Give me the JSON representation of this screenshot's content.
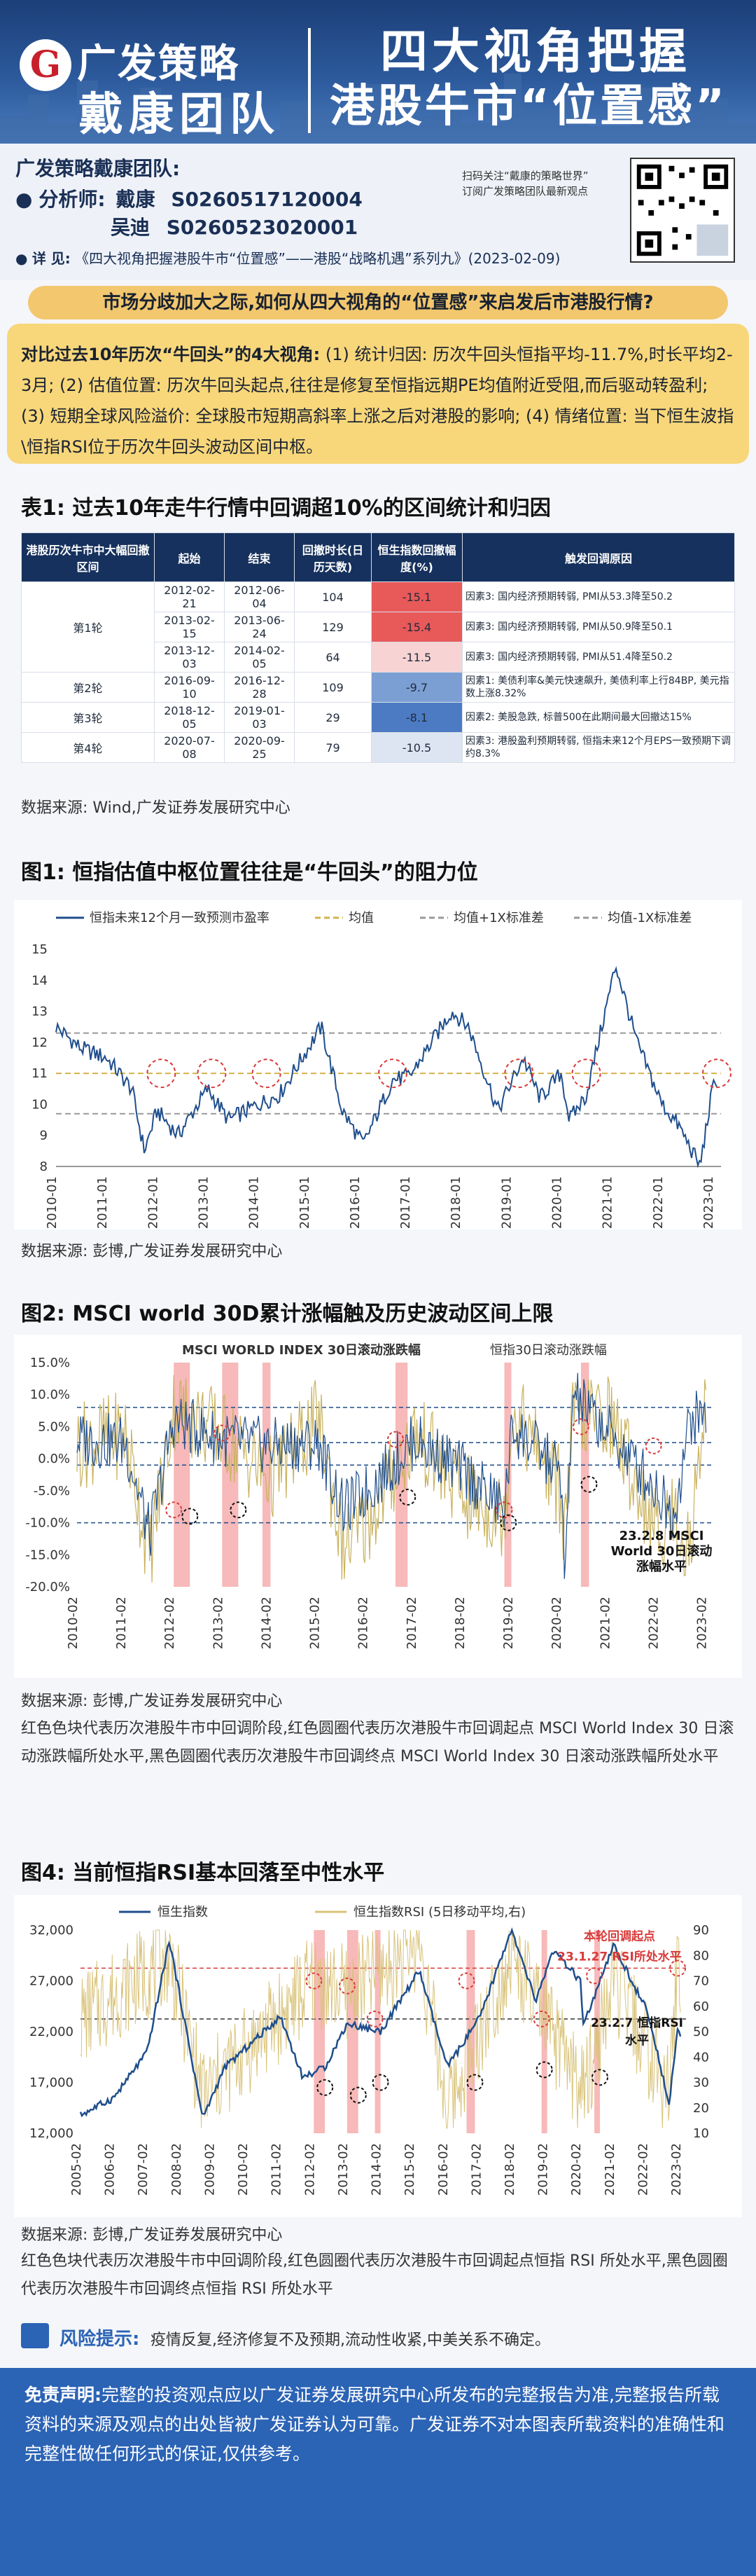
{
  "header": {
    "brand": "广发策略",
    "team": "戴康团队",
    "title_line1": "四大视角把握",
    "title_line2": "港股牛市“位置感”"
  },
  "info": {
    "team_label": "广发策略戴康团队:",
    "analyst_label": "分析师:",
    "analysts": [
      {
        "name": "戴康",
        "id": "S0260517120004"
      },
      {
        "name": "吴迪",
        "id": "S0260523020001"
      }
    ],
    "detail_label": "详 见:",
    "detail_text": "《四大视角把握港股牛市“位置感”——港股“战略机遇”系列九》(2023-02-09)",
    "qr_note_1": "扫码关注“戴康的策略世界”",
    "qr_note_2": "订阅广发策略团队最新观点"
  },
  "question": "市场分歧加大之际,如何从四大视角的“位置感”来启发后市港股行情?",
  "summary": "对比过去10年历次“牛回头”的4大视角: (1) 统计归因: 历次牛回头恒指平均-11.7%,时长平均2-3月; (2) 估值位置: 历次牛回头起点,往往是修复至恒指远期PE均值附近受阻,而后驱动转盈利; (3) 短期全球风险溢价: 全球股市短期高斜率上涨之后对港股的影响; (4) 情绪位置: 当下恒生波指\\恒指RSI位于历次牛回头波动区间中枢。",
  "summary_lead": "对比过去10年历次“牛回头”的4大视角:",
  "summary_body": " (1) 统计归因: 历次牛回头恒指平均-11.7%,时长平均2-3月; (2) 估值位置: 历次牛回头起点,往往是修复至恒指远期PE均值附近受阻,而后驱动转盈利; (3) 短期全球风险溢价: 全球股市短期高斜率上涨之后对港股的影响; (4) 情绪位置: 当下恒生波指\\恒指RSI位于历次牛回头波动区间中枢。",
  "table": {
    "title": "表1: 过去10年走牛行情中回调超10%的区间统计和归因",
    "headers": [
      "港股历次牛市中大幅回撤区间",
      "起始",
      "结束",
      "回撤时长(日历天数)",
      "恒生指数回撤幅度(%)",
      "触发回调原因"
    ],
    "rows": [
      {
        "round": "第1轮",
        "start": "2012-02-21",
        "end": "2012-06-04",
        "days": "104",
        "pct": "-15.1",
        "reason": "因素3: 国内经济预期转弱, PMI从53.3降至50.2",
        "pct_val": -15.1
      },
      {
        "round": "",
        "start": "2013-02-15",
        "end": "2013-06-24",
        "days": "129",
        "pct": "-15.4",
        "reason": "因素3: 国内经济预期转弱, PMI从50.9降至50.1",
        "pct_val": -15.4
      },
      {
        "round": "",
        "start": "2013-12-03",
        "end": "2014-02-05",
        "days": "64",
        "pct": "-11.5",
        "reason": "因素3: 国内经济预期转弱, PMI从51.4降至50.2",
        "pct_val": -11.5
      },
      {
        "round": "第2轮",
        "start": "2016-09-10",
        "end": "2016-12-28",
        "days": "109",
        "pct": "-9.7",
        "reason": "因素1: 美债利率&美元快速飙升, 美债利率上行84BP, 美元指数上涨8.32%",
        "pct_val": -9.7
      },
      {
        "round": "第3轮",
        "start": "2018-12-05",
        "end": "2019-01-03",
        "days": "29",
        "pct": "-8.1",
        "reason": "因素2: 美股急跌, 标普500在此期间最大回撤达15%",
        "pct_val": -8.1
      },
      {
        "round": "第4轮",
        "start": "2020-07-08",
        "end": "2020-09-25",
        "days": "79",
        "pct": "-10.5",
        "reason": "因素3: 港股盈利预期转弱, 恒指未来12个月EPS一致预期下调约8.3%",
        "pct_val": -10.5
      }
    ],
    "source": "数据来源: Wind,广发证券发展研究中心"
  },
  "fig1": {
    "title": "图1: 恒指估值中枢位置往往是“牛回头”的阻力位",
    "source": "数据来源: 彭博,广发证券发展研究中心"
  },
  "fig2": {
    "title": "图2: MSCI world 30D累计涨幅触及历史波动区间上限",
    "source": "数据来源: 彭博,广发证券发展研究中心",
    "note": "红色色块代表历次港股牛市中回调阶段,红色圆圈代表历次港股牛市回调起点 MSCI World Index 30 日滚动涨跌幅所处水平,黑色圆圈代表历次港股牛市回调终点 MSCI World Index 30 日滚动涨跌幅所处水平"
  },
  "fig3": {
    "title": "图4: 当前恒指RSI基本回落至中性水平",
    "source": "数据来源: 彭博,广发证券发展研究中心",
    "note": "红色色块代表历次港股牛市中回调阶段,红色圆圈代表历次港股牛市回调起点恒指 RSI 所处水平,黑色圆圈代表历次港股牛市回调终点恒指 RSI 所处水平"
  },
  "chart_data": [
    {
      "type": "line",
      "title": "图1: 恒指估值中枢位置往往是“牛回头”的阻力位",
      "series": [
        {
          "name": "恒指未来12个月一致预测市盈率",
          "x": [
            "2010-01",
            "2010-07",
            "2011-01",
            "2011-07",
            "2011-10",
            "2012-01",
            "2012-06",
            "2013-01",
            "2013-06",
            "2014-01",
            "2014-06",
            "2015-04",
            "2015-09",
            "2016-02",
            "2016-09",
            "2017-01",
            "2017-11",
            "2018-03",
            "2018-10",
            "2019-04",
            "2019-08",
            "2020-01",
            "2020-03",
            "2020-07",
            "2021-02",
            "2021-07",
            "2022-01",
            "2022-05",
            "2022-10",
            "2023-01",
            "2023-02"
          ],
          "values": [
            12.5,
            11.8,
            11.5,
            10.5,
            8.5,
            9.8,
            9.0,
            10.5,
            9.5,
            10.0,
            10.3,
            12.5,
            9.8,
            8.7,
            10.8,
            10.9,
            13.0,
            12.5,
            9.8,
            11.5,
            10.2,
            11.0,
            9.5,
            10.3,
            14.5,
            12.0,
            10.0,
            9.3,
            8.0,
            10.5,
            10.8
          ]
        },
        {
          "name": "均值",
          "x": [
            "2010-01",
            "2023-02"
          ],
          "values": [
            11.0,
            11.0
          ]
        },
        {
          "name": "均值+1X标准差",
          "x": [
            "2010-01",
            "2023-02"
          ],
          "values": [
            12.3,
            12.3
          ]
        },
        {
          "name": "均值-1X标准差",
          "x": [
            "2010-01",
            "2023-02"
          ],
          "values": [
            9.7,
            9.7
          ]
        }
      ],
      "ylim": [
        8,
        15
      ],
      "x_ticks": [
        "2010-01",
        "2011-01",
        "2012-01",
        "2013-01",
        "2014-01",
        "2015-01",
        "2016-01",
        "2017-01",
        "2018-01",
        "2019-01",
        "2020-01",
        "2021-01",
        "2022-01",
        "2023-01"
      ],
      "y_ticks": [
        8,
        9,
        10,
        11,
        12,
        13,
        14,
        15
      ],
      "grid": false,
      "legend": "top"
    },
    {
      "type": "line",
      "title": "图2: MSCI world 30D累计涨幅触及历史波动区间上限",
      "series": [
        {
          "name": "MSCI WORLD INDEX 30日滚动涨跌幅",
          "x": [
            "2010-02",
            "2011-02",
            "2011-08",
            "2012-02",
            "2013-02",
            "2014-02",
            "2015-02",
            "2015-08",
            "2016-02",
            "2017-02",
            "2018-02",
            "2018-12",
            "2019-02",
            "2020-02",
            "2020-03",
            "2020-05",
            "2021-02",
            "2022-02",
            "2022-06",
            "2022-10",
            "2023-02"
          ],
          "values": [
            3.0,
            2.5,
            -12.0,
            6.0,
            3.0,
            2.0,
            2.5,
            -8.0,
            -5.0,
            3.0,
            -2.0,
            -8.0,
            5.0,
            -2.0,
            -20.0,
            10.0,
            4.0,
            -5.0,
            -9.0,
            6.0,
            7.0
          ]
        },
        {
          "name": "恒指30日滚动涨跌幅",
          "x": [
            "2010-02",
            "2011-02",
            "2011-08",
            "2012-02",
            "2013-02",
            "2014-02",
            "2015-02",
            "2015-08",
            "2016-02",
            "2017-02",
            "2018-02",
            "2018-12",
            "2019-02",
            "2020-02",
            "2020-03",
            "2020-05",
            "2021-02",
            "2022-02",
            "2022-06",
            "2022-10",
            "2023-02"
          ],
          "values": [
            2.0,
            4.0,
            -15.0,
            8.0,
            4.0,
            -3.0,
            6.0,
            -14.0,
            -10.0,
            4.0,
            -6.0,
            -9.0,
            8.0,
            -5.0,
            -12.0,
            6.0,
            7.0,
            -12.0,
            -8.0,
            -15.0,
            12.0
          ]
        }
      ],
      "ylim": [
        -20,
        15
      ],
      "y_ticks": [
        "-20.0%",
        "-15.0%",
        "-10.0%",
        "-5.0%",
        "0.0%",
        "5.0%",
        "10.0%",
        "15.0%"
      ],
      "x_ticks": [
        "2010-02",
        "2011-02",
        "2012-02",
        "2013-02",
        "2014-02",
        "2015-02",
        "2016-02",
        "2017-02",
        "2018-02",
        "2019-02",
        "2020-02",
        "2021-02",
        "2022-02",
        "2023-02"
      ],
      "hlines": [
        8.0,
        2.5,
        -1.0,
        -10.0
      ],
      "annotation": "23.2.8 MSCI World 30日滚动涨幅水平",
      "legend": "top"
    },
    {
      "type": "line",
      "title": "图4: 当前恒指RSI基本回落至中性水平",
      "series": [
        {
          "name": "恒生指数",
          "axis": "left",
          "x": [
            "2005-02",
            "2006-02",
            "2007-02",
            "2007-10",
            "2008-10",
            "2009-06",
            "2010-02",
            "2011-02",
            "2011-10",
            "2012-06",
            "2013-02",
            "2014-02",
            "2015-04",
            "2016-02",
            "2017-02",
            "2018-01",
            "2018-10",
            "2019-04",
            "2020-02",
            "2020-03",
            "2021-02",
            "2022-02",
            "2022-10",
            "2023-01",
            "2023-02"
          ],
          "values": [
            13800,
            15500,
            20000,
            31000,
            13500,
            18500,
            20500,
            23500,
            17500,
            18500,
            22800,
            22000,
            28000,
            18500,
            23500,
            32000,
            25000,
            30000,
            27000,
            22500,
            30500,
            24000,
            15000,
            22500,
            21500
          ]
        },
        {
          "name": "恒生指数RSI (5日移动平均,右)",
          "axis": "right",
          "x": [
            "2005-02",
            "2007-10",
            "2008-10",
            "2012-02",
            "2013-02",
            "2015-04",
            "2016-02",
            "2018-01",
            "2020-03",
            "2021-02",
            "2022-10",
            "2023-01",
            "2023-02"
          ],
          "values": [
            55,
            80,
            25,
            70,
            65,
            85,
            20,
            80,
            25,
            70,
            25,
            80,
            57
          ]
        }
      ],
      "ylim_left": [
        12000,
        32000
      ],
      "ylim_right": [
        10,
        90
      ],
      "y_ticks_left": [
        "12,000",
        "17,000",
        "22,000",
        "27,000",
        "32,000"
      ],
      "y_ticks_right": [
        10,
        20,
        30,
        40,
        50,
        60,
        70,
        80,
        90
      ],
      "x_ticks": [
        "2005-02",
        "2006-02",
        "2007-02",
        "2008-02",
        "2009-02",
        "2010-02",
        "2011-02",
        "2012-02",
        "2013-02",
        "2014-02",
        "2015-02",
        "2016-02",
        "2017-02",
        "2018-02",
        "2019-02",
        "2020-02",
        "2021-02",
        "2022-02",
        "2023-02"
      ],
      "annotations": [
        "本轮回调起点 23.1.27 RSI所处水平",
        "23.2.7 恒指RSI 水平"
      ],
      "legend": "top"
    }
  ],
  "risk": {
    "label": "风险提示:",
    "text": "疫情反复,经济修复不及预期,流动性收紧,中美关系不确定。"
  },
  "disclaimer": {
    "label": "免责声明:",
    "text": "完整的投资观点应以广发证券发展研究中心所发布的完整报告为准,完整报告所载资料的来源及观点的出处皆被广发证券认为可靠。广发证券不对本图表所载资料的准确性和完整性做任何形式的保证,仅供参考。"
  },
  "colors": {
    "navy": "#16315d",
    "gold": "#f2c76e",
    "red": "#d93a3a",
    "blue": "#2b63b5"
  }
}
